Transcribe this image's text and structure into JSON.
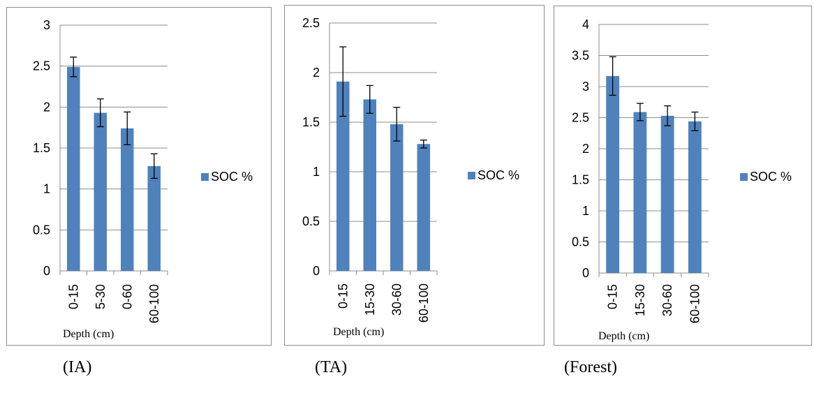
{
  "chart_data": [
    {
      "type": "bar",
      "caption": "(IA)",
      "xlabel": "Depth (cm)",
      "ylabel": "",
      "categories": [
        "0-15",
        "5-30",
        "0-60",
        "60-100"
      ],
      "series": [
        {
          "name": "SOC %",
          "values": [
            2.49,
            1.93,
            1.74,
            1.28
          ],
          "errors": [
            0.12,
            0.17,
            0.2,
            0.15
          ]
        }
      ],
      "ylim": [
        0,
        3
      ],
      "yticks": [
        "0",
        "0.5",
        "1",
        "1.5",
        "2",
        "2.5",
        "3"
      ],
      "grid": true,
      "legend": "right"
    },
    {
      "type": "bar",
      "caption": "(TA)",
      "xlabel": "Depth (cm)",
      "ylabel": "",
      "categories": [
        "0-15",
        "15-30",
        "30-60",
        "60-100"
      ],
      "series": [
        {
          "name": "SOC %",
          "values": [
            1.91,
            1.73,
            1.48,
            1.28
          ],
          "errors": [
            0.35,
            0.14,
            0.17,
            0.04
          ]
        }
      ],
      "ylim": [
        0,
        2.5
      ],
      "yticks": [
        "0",
        "0.5",
        "1",
        "1.5",
        "2",
        "2.5"
      ],
      "grid": true,
      "legend": "right"
    },
    {
      "type": "bar",
      "caption": "(Forest)",
      "xlabel": "Depth (cm)",
      "ylabel": "",
      "categories": [
        "0-15",
        "15-30",
        "30-60",
        "60-100"
      ],
      "series": [
        {
          "name": "SOC %",
          "values": [
            3.17,
            2.59,
            2.53,
            2.44
          ],
          "errors": [
            0.31,
            0.14,
            0.16,
            0.15
          ]
        }
      ],
      "ylim": [
        0,
        4
      ],
      "yticks": [
        "0",
        "0.5",
        "1",
        "1.5",
        "2",
        "2.5",
        "3",
        "3.5",
        "4"
      ],
      "grid": true,
      "legend": "right"
    }
  ],
  "colors": {
    "bar": "#4f81bd",
    "grid": "#8c8c8c",
    "axis": "#8c8c8c",
    "error": "#000000"
  }
}
